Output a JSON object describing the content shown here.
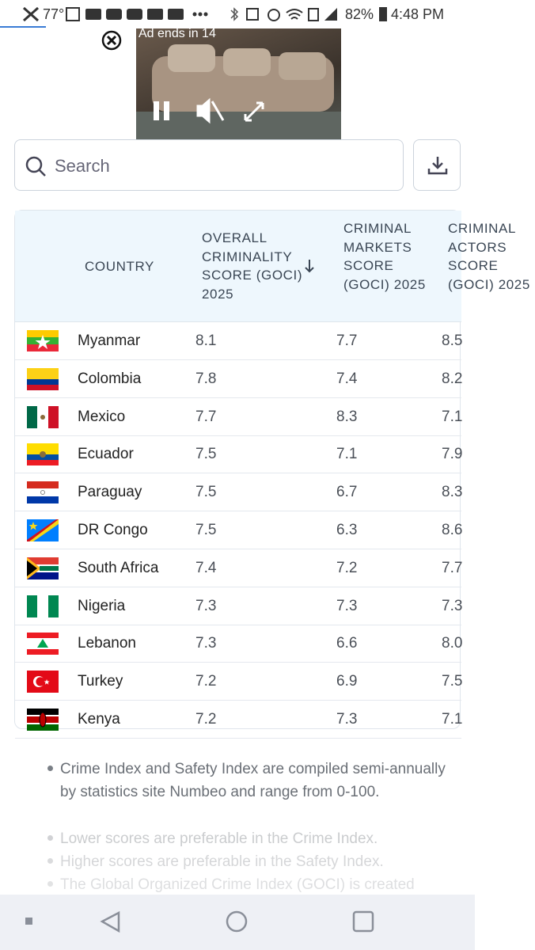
{
  "status_bar": {
    "temperature": "77°",
    "battery": "82%",
    "time": "4:48 PM"
  },
  "ad": {
    "countdown": "Ad ends in 14"
  },
  "search": {
    "placeholder": "Search"
  },
  "table": {
    "headers": [
      "COUNTRY",
      "OVERALL CRIMINALITY SCORE (GOCI) 2025",
      "CRIMINAL MARKETS SCORE (GOCI) 2025",
      "CRIMINAL ACTORS SCORE (GOCI) 2025"
    ],
    "rows": [
      [
        "Myanmar",
        "8.1",
        "7.7",
        "8.5"
      ],
      [
        "Colombia",
        "7.8",
        "7.4",
        "8.2"
      ],
      [
        "Mexico",
        "7.7",
        "8.3",
        "7.1"
      ],
      [
        "Ecuador",
        "7.5",
        "7.1",
        "7.9"
      ],
      [
        "Paraguay",
        "7.5",
        "6.7",
        "8.3"
      ],
      [
        "DR Congo",
        "7.5",
        "6.3",
        "8.6"
      ],
      [
        "South Africa",
        "7.4",
        "7.2",
        "7.7"
      ],
      [
        "Nigeria",
        "7.3",
        "7.3",
        "7.3"
      ],
      [
        "Lebanon",
        "7.3",
        "6.6",
        "8.0"
      ],
      [
        "Turkey",
        "7.2",
        "6.9",
        "7.5"
      ],
      [
        "Kenya",
        "7.2",
        "7.3",
        "7.1"
      ]
    ]
  },
  "notes": [
    "Crime Index and Safety Index are compiled semi-annually by statistics site Numbeo and range from 0-100.",
    "Lower scores are preferable in the Crime Index.",
    "Higher scores are preferable in the Safety Index.",
    "The Global Organized Crime Index (GOCI) is created"
  ]
}
